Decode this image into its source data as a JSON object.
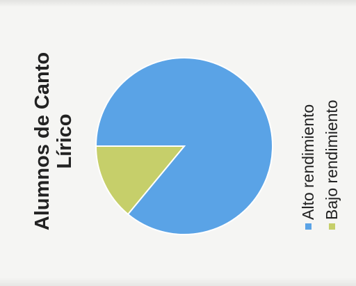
{
  "chart_data": {
    "type": "pie",
    "title": [
      "Alumnos de Canto",
      "Lírico"
    ],
    "categories": [
      "Alto rendimiento",
      "Bajo rendimiento"
    ],
    "values": [
      86,
      14
    ],
    "colors": [
      "#5aa3e6",
      "#c6cf6a"
    ],
    "legend_position": "right"
  }
}
